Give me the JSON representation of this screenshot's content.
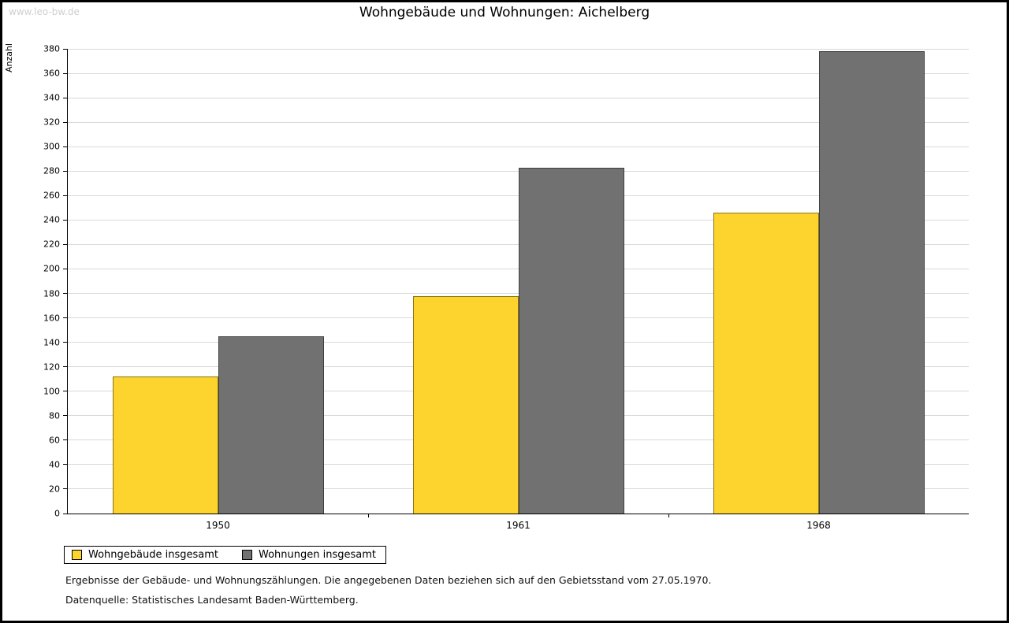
{
  "watermark": "www.leo-bw.de",
  "title": "Wohngebäude und Wohnungen: Aichelberg",
  "chart_data": {
    "type": "bar",
    "categories": [
      "1950",
      "1961",
      "1968"
    ],
    "series": [
      {
        "name": "Wohngebäude insgesamt",
        "color": "#fcd42d",
        "values": [
          112,
          178,
          246
        ]
      },
      {
        "name": "Wohnungen insgesamt",
        "color": "#717171",
        "values": [
          145,
          283,
          378
        ]
      }
    ],
    "title": "Wohngebäude und Wohnungen: Aichelberg",
    "xlabel": "",
    "ylabel": "Anzahl",
    "ylim": [
      0,
      380
    ],
    "ytick_step": 20,
    "grid": true,
    "legend_position": "bottom-left",
    "gridline_color": "#d9d9d9"
  },
  "notes": {
    "line1": "Ergebnisse der Gebäude- und Wohnungszählungen. Die angegebenen Daten beziehen sich auf den Gebietsstand vom 27.05.1970.",
    "line2": "Datenquelle: Statistisches Landesamt Baden-Württemberg."
  }
}
